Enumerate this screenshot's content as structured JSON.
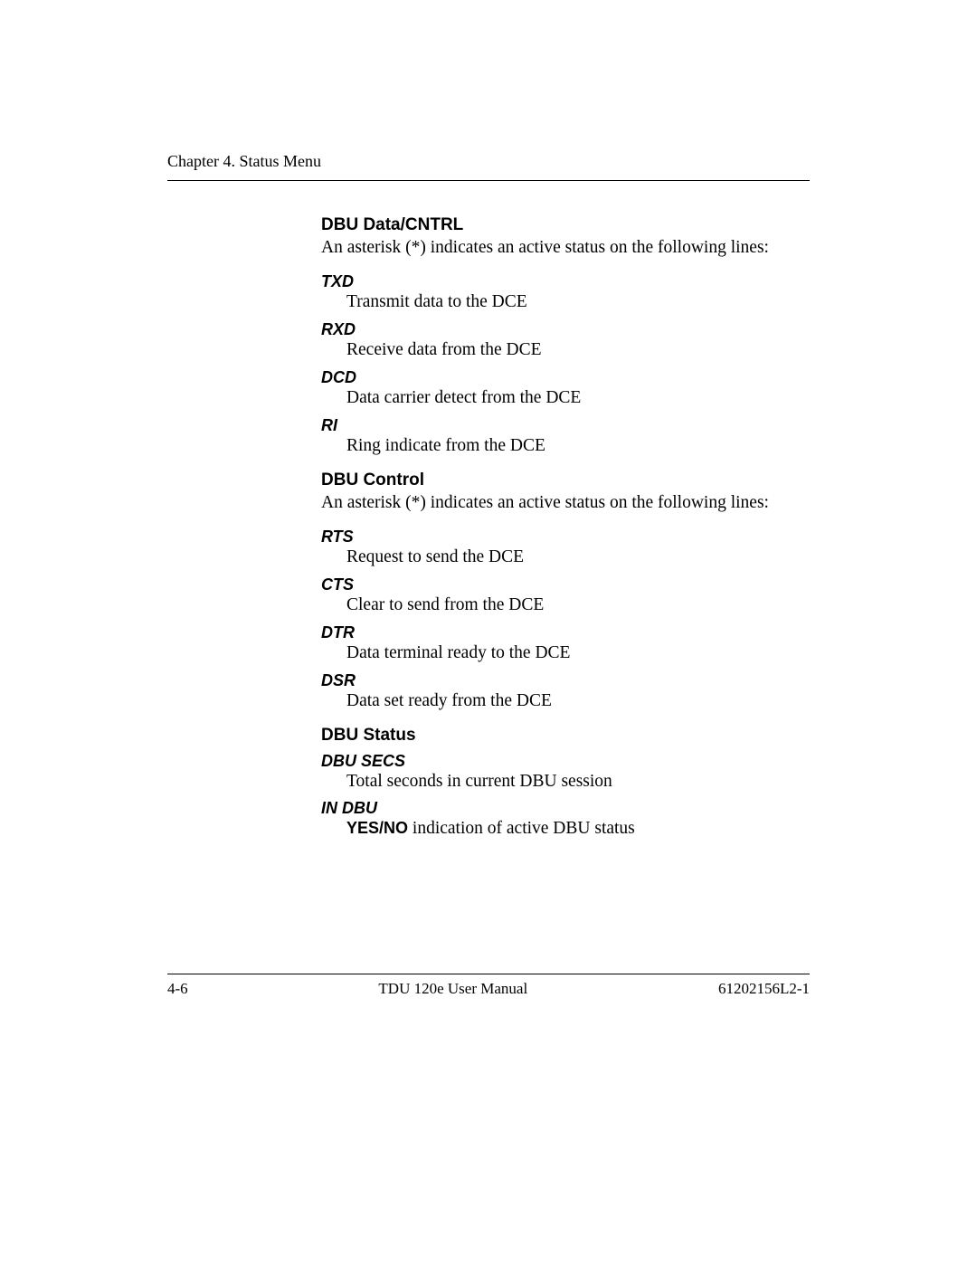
{
  "header": {
    "chapter": "Chapter 4. Status Menu"
  },
  "sections": [
    {
      "title": "DBU Data/CNTRL",
      "intro": "An asterisk (*) indicates an active status on the following lines:",
      "items": [
        {
          "term": "TXD",
          "desc": "Transmit data to the DCE"
        },
        {
          "term": "RXD",
          "desc": "Receive data from the DCE"
        },
        {
          "term": "DCD",
          "desc": "Data carrier detect from the DCE"
        },
        {
          "term": "RI",
          "desc": "Ring indicate from the DCE"
        }
      ]
    },
    {
      "title": "DBU Control",
      "intro": "An asterisk (*) indicates an active status on the following lines:",
      "items": [
        {
          "term": "RTS",
          "desc": "Request to send the DCE"
        },
        {
          "term": "CTS",
          "desc": "Clear to send from the DCE"
        },
        {
          "term": "DTR",
          "desc": "Data terminal ready to the DCE"
        },
        {
          "term": "DSR",
          "desc": "Data set ready from the DCE"
        }
      ]
    },
    {
      "title": "DBU Status",
      "intro": "",
      "items": [
        {
          "term": "DBU SECS",
          "desc": "Total seconds in current DBU session"
        },
        {
          "term": "IN DBU",
          "yn": "YES/NO",
          "desc_tail": " indication of active DBU status"
        }
      ]
    }
  ],
  "footer": {
    "page": "4-6",
    "manual": "TDU 120e  User Manual",
    "docnum": "61202156L2-1"
  }
}
